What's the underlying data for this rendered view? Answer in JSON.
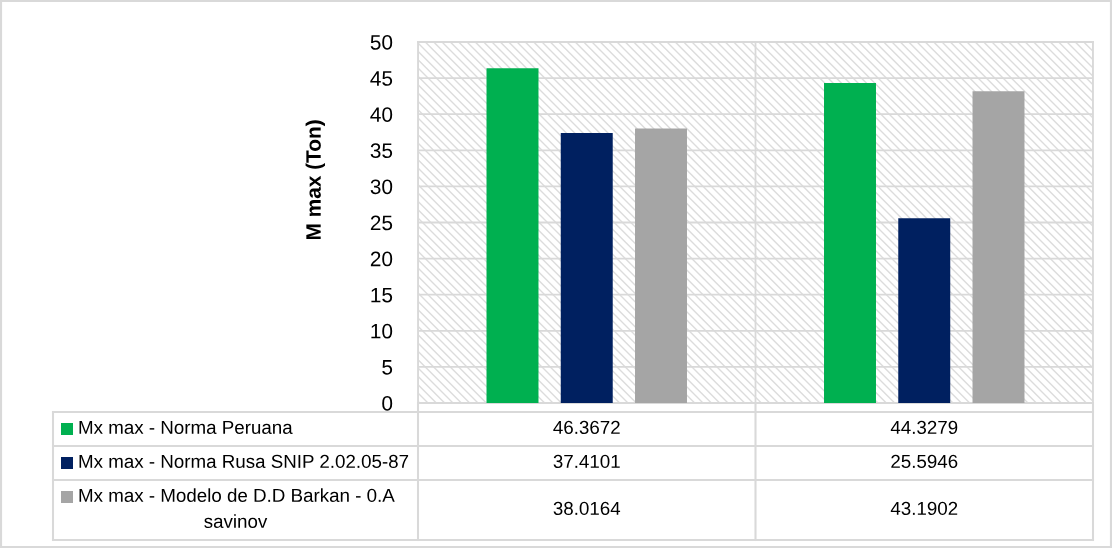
{
  "chart_data": {
    "type": "bar",
    "ylabel": "M max (Ton)",
    "categories": [
      null,
      null
    ],
    "series": [
      {
        "name": "Mx max - Norma Peruana",
        "color": "#00b050",
        "values": [
          46.3672,
          44.3279
        ]
      },
      {
        "name": "Mx max - Norma Rusa SNIP 2.02.05-87",
        "color": "#002060",
        "values": [
          37.4101,
          25.5946
        ]
      },
      {
        "name": "Mx max - Modelo de D.D Barkan - 0.A savinov",
        "color": "#a5a5a5",
        "values": [
          38.0164,
          43.1902
        ]
      }
    ],
    "ylim": [
      0,
      50
    ],
    "yticks": [
      0,
      5,
      10,
      15,
      20,
      25,
      30,
      35,
      40,
      45,
      50
    ],
    "grid": true,
    "legend": "bottom",
    "data_labels": true
  }
}
